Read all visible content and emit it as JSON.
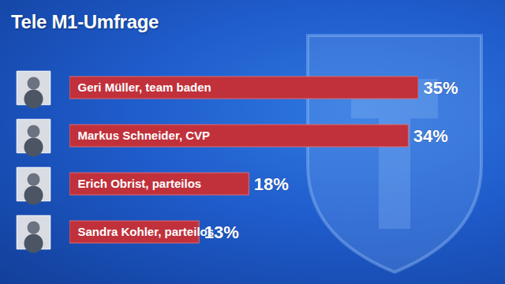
{
  "chart_data": {
    "type": "bar",
    "title": "Tele M1-Umfrage",
    "orientation": "horizontal",
    "categories": [
      "Geri Müller, team baden",
      "Markus Schneider, CVP",
      "Erich Obrist, parteilos",
      "Sandra Kohler, parteilos"
    ],
    "values": [
      35,
      34,
      18,
      13
    ],
    "value_labels": [
      "35%",
      "34%",
      "18%",
      "13%"
    ],
    "color": "#c0313b",
    "xlim": [
      0,
      35
    ],
    "data_labels": true,
    "tick_labels": false,
    "grid": false
  }
}
